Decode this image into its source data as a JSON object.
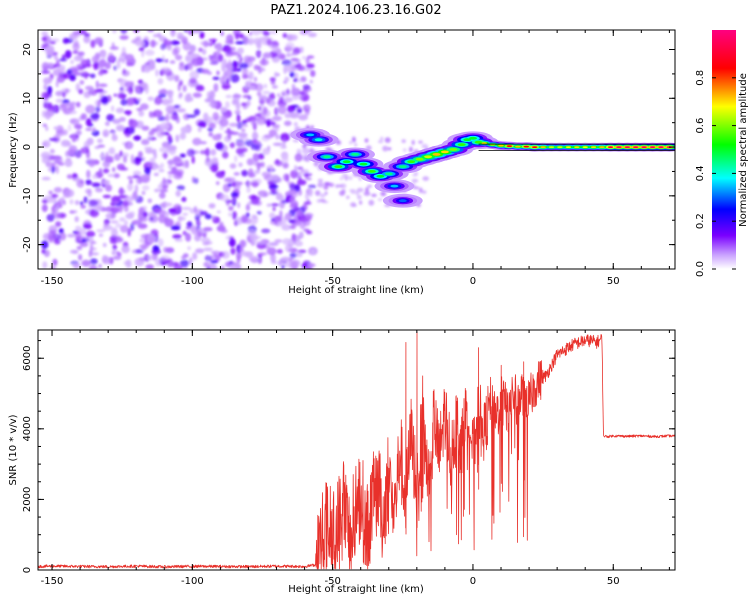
{
  "title": "PAZ1.2024.106.23.16.G02",
  "chart_data": [
    {
      "type": "heatmap",
      "panel": "spectrogram",
      "xlabel": "Height of straight line (km)",
      "ylabel": "Frequency (Hz)",
      "xlim": [
        -155,
        72
      ],
      "ylim": [
        -25,
        24
      ],
      "xticks": [
        -150,
        -100,
        -50,
        0,
        50
      ],
      "yticks": [
        -20,
        -10,
        0,
        10,
        20
      ],
      "colorbar": {
        "label": "Normalized spectral amplitude",
        "ticks": [
          0.0,
          0.2,
          0.4,
          0.6,
          0.8
        ],
        "range": [
          0,
          1
        ],
        "colormap": [
          "#ffffff",
          "#8b00ff",
          "#0000ff",
          "#00ffff",
          "#00ff00",
          "#ffff00",
          "#ff0000",
          "#ff0080"
        ]
      },
      "noise_region_x": [
        -153,
        -57
      ],
      "ridge": [
        {
          "x": -58,
          "y": 2.5,
          "v": 0.35
        },
        {
          "x": -55,
          "y": 1.5,
          "v": 0.4
        },
        {
          "x": -52,
          "y": -2,
          "v": 0.45
        },
        {
          "x": -48,
          "y": -4,
          "v": 0.55
        },
        {
          "x": -45,
          "y": -3,
          "v": 0.5
        },
        {
          "x": -42,
          "y": -1.5,
          "v": 0.45
        },
        {
          "x": -39,
          "y": -3.5,
          "v": 0.5
        },
        {
          "x": -36,
          "y": -5,
          "v": 0.55
        },
        {
          "x": -33,
          "y": -6,
          "v": 0.5
        },
        {
          "x": -30,
          "y": -5.5,
          "v": 0.45
        },
        {
          "x": -28,
          "y": -8,
          "v": 0.35
        },
        {
          "x": -25,
          "y": -11,
          "v": 0.3
        },
        {
          "x": -25,
          "y": -4,
          "v": 0.45
        },
        {
          "x": -22,
          "y": -3,
          "v": 0.55
        },
        {
          "x": -19,
          "y": -2.5,
          "v": 0.6
        },
        {
          "x": -16,
          "y": -2,
          "v": 0.65
        },
        {
          "x": -13,
          "y": -1.5,
          "v": 0.72
        },
        {
          "x": -10,
          "y": -1,
          "v": 0.7
        },
        {
          "x": -7,
          "y": -0.5,
          "v": 0.6
        },
        {
          "x": -4,
          "y": 0.5,
          "v": 0.55
        },
        {
          "x": -2,
          "y": 1.5,
          "v": 0.5
        },
        {
          "x": 0,
          "y": 1.8,
          "v": 0.5
        },
        {
          "x": 2,
          "y": 1,
          "v": 0.55
        },
        {
          "x": 4,
          "y": 0.8,
          "v": 0.7
        },
        {
          "x": 7,
          "y": 0.5,
          "v": 0.65
        },
        {
          "x": 10,
          "y": 0.3,
          "v": 0.72
        },
        {
          "x": 13,
          "y": 0.2,
          "v": 0.85
        },
        {
          "x": 16,
          "y": 0.1,
          "v": 0.72
        },
        {
          "x": 19,
          "y": 0.1,
          "v": 0.85
        },
        {
          "x": 22,
          "y": 0,
          "v": 0.86
        },
        {
          "x": 25,
          "y": 0,
          "v": 0.72
        },
        {
          "x": 28,
          "y": 0,
          "v": 0.65
        },
        {
          "x": 31,
          "y": 0,
          "v": 0.65
        },
        {
          "x": 34,
          "y": 0,
          "v": 0.68
        },
        {
          "x": 37,
          "y": 0,
          "v": 0.7
        },
        {
          "x": 40,
          "y": 0,
          "v": 0.68
        },
        {
          "x": 43,
          "y": 0,
          "v": 0.7
        },
        {
          "x": 46,
          "y": 0,
          "v": 0.72
        },
        {
          "x": 49,
          "y": 0,
          "v": 0.9
        },
        {
          "x": 52,
          "y": 0,
          "v": 0.95
        },
        {
          "x": 55,
          "y": 0,
          "v": 0.95
        },
        {
          "x": 58,
          "y": 0,
          "v": 0.95
        },
        {
          "x": 61,
          "y": 0,
          "v": 0.95
        },
        {
          "x": 64,
          "y": 0,
          "v": 0.95
        },
        {
          "x": 67,
          "y": 0,
          "v": 0.95
        },
        {
          "x": 70,
          "y": 0,
          "v": 0.95
        }
      ]
    },
    {
      "type": "line",
      "panel": "snr",
      "xlabel": "Height of straight line (km)",
      "ylabel": "SNR (10 * v/v)",
      "xlim": [
        -155,
        72
      ],
      "ylim": [
        0,
        6800
      ],
      "xticks": [
        -150,
        -100,
        -50,
        0,
        50
      ],
      "yticks": [
        0,
        2000,
        4000,
        6000
      ],
      "color": "#e8302a",
      "series": [
        {
          "x": [
            -155,
            -150,
            -140,
            -130,
            -120,
            -110,
            -100,
            -90,
            -80,
            -70,
            -60,
            -56,
            -54,
            -52,
            -50,
            -48,
            -46,
            -44,
            -42,
            -40,
            -38,
            -36,
            -34,
            -32,
            -30,
            -28,
            -26,
            -24,
            -22,
            -20,
            -18,
            -16,
            -14,
            -12,
            -10,
            -8,
            -6,
            -4,
            -2,
            0,
            2,
            4,
            6,
            8,
            10,
            12,
            14,
            16,
            18,
            20,
            22,
            24,
            26,
            28,
            30,
            32,
            34,
            36,
            38,
            40,
            42,
            44,
            46,
            46.5,
            48,
            50,
            55,
            60,
            65,
            70,
            72
          ],
          "y": [
            100,
            110,
            100,
            95,
            110,
            90,
            105,
            100,
            95,
            110,
            100,
            150,
            600,
            1100,
            700,
            1200,
            1900,
            900,
            1500,
            2200,
            1000,
            1800,
            2500,
            1400,
            2900,
            1600,
            3400,
            2000,
            3800,
            2400,
            4100,
            2800,
            4300,
            3200,
            4500,
            3300,
            4200,
            3500,
            4800,
            3300,
            4600,
            3900,
            4700,
            4200,
            4900,
            4500,
            5000,
            4700,
            5100,
            4800,
            5200,
            5400,
            5500,
            5800,
            6100,
            6200,
            6300,
            6400,
            6450,
            6500,
            6500,
            6450,
            6550,
            3800,
            3780,
            3800,
            3790,
            3800,
            3780,
            3800,
            3790
          ]
        }
      ],
      "spikes": [
        {
          "x": -24,
          "y": 6450
        },
        {
          "x": -20,
          "y": 6750
        },
        {
          "x": -18,
          "y": 5500
        },
        {
          "x": 2,
          "y": 6300
        },
        {
          "x": 10,
          "y": 5800
        },
        {
          "x": 18,
          "y": 5900
        }
      ]
    }
  ]
}
